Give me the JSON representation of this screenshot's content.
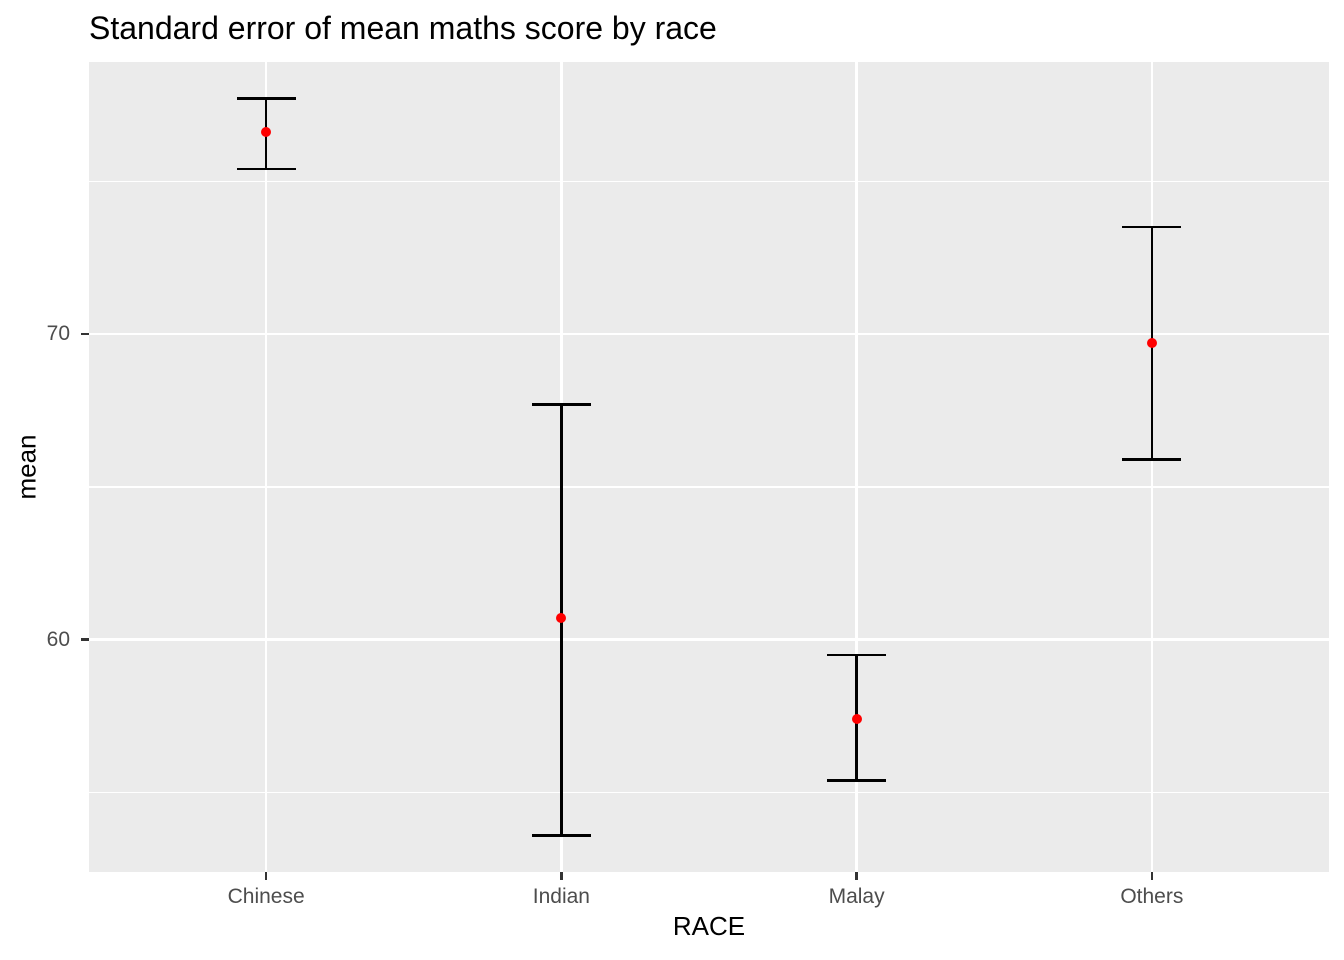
{
  "chart_data": {
    "type": "scatter",
    "subtype": "errorbar",
    "title": "Standard error of mean maths score by race",
    "xlabel": "RACE",
    "ylabel": "mean",
    "categories": [
      "Chinese",
      "Indian",
      "Malay",
      "Others"
    ],
    "means": [
      76.6,
      60.7,
      57.4,
      69.7
    ],
    "lower": [
      75.4,
      53.6,
      55.4,
      65.9
    ],
    "upper": [
      77.7,
      67.7,
      59.5,
      73.5
    ],
    "ylim": [
      52.4,
      78.9
    ],
    "yticks_major": [
      60,
      70
    ],
    "ytick_labels": [
      "60",
      "70"
    ],
    "yticks_minor": [
      55,
      65,
      75
    ],
    "grid": true,
    "legend": "none",
    "errorbar_cap_width_units": 0.2,
    "colors": {
      "point": "#FF0000",
      "errorbar": "#000000",
      "panel_background": "#EBEBEB",
      "gridline": "#FFFFFF",
      "tick_mark": "#333333",
      "tick_text": "#4D4D4D",
      "title_text": "#000000"
    }
  }
}
